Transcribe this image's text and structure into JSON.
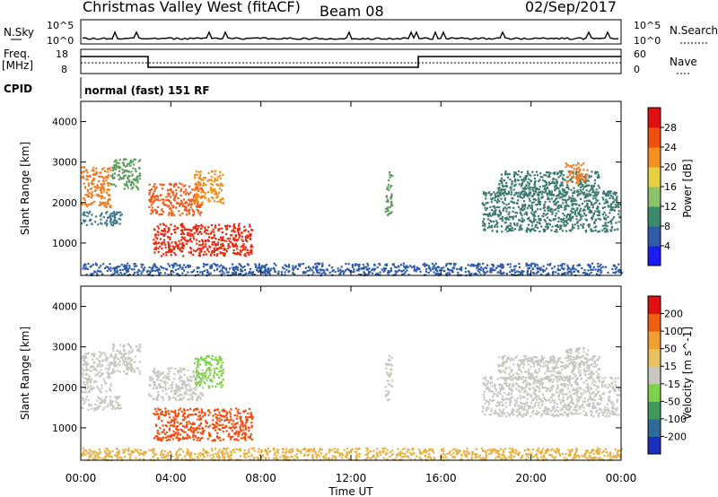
{
  "header": {
    "title": "Christmas Valley West (fitACF)",
    "beam": "Beam 08",
    "date": "02/Sep/2017"
  },
  "top_panels": {
    "nsky_label": "N.Sky",
    "nsky_ticks": [
      "10^5",
      "10^0"
    ],
    "nsearch_label": "N.Search",
    "nsearch_ticks": [
      "10^5",
      "10^0"
    ],
    "freq_label_1": "Freq.",
    "freq_label_2": "[MHz]",
    "freq_ticks": [
      "18",
      "8"
    ],
    "nave_label": "Nave",
    "nave_ticks": [
      "60",
      "0"
    ],
    "cpid_label": "CPID",
    "cpid_text": "normal (fast) 151 RF"
  },
  "chart_data": [
    {
      "type": "heatmap",
      "panel": "power",
      "ylabel": "Slant Range [km]",
      "xlabel": "Time UT",
      "x_ticks": [
        "00:00",
        "04:00",
        "08:00",
        "12:00",
        "16:00",
        "20:00",
        "00:00"
      ],
      "x_range_hours": [
        0,
        24
      ],
      "y_ticks": [
        1000,
        2000,
        3000,
        4000
      ],
      "y_range": [
        200,
        4500
      ],
      "colorbar": {
        "label": "Power [dB]",
        "ticks": [
          "4",
          "8",
          "12",
          "16",
          "20",
          "24",
          "28"
        ],
        "colors": [
          "#1c1cf0",
          "#2f5ca8",
          "#3c8a6c",
          "#8cc26a",
          "#e8d040",
          "#f39020",
          "#f05010",
          "#e01010"
        ]
      },
      "regions": [
        {
          "t": [
            0.0,
            1.3
          ],
          "r": [
            1900,
            2900
          ],
          "color": "#f07a1e"
        },
        {
          "t": [
            0.0,
            1.8
          ],
          "r": [
            1450,
            1800
          ],
          "color": "#3c7a8c"
        },
        {
          "t": [
            1.3,
            2.6
          ],
          "r": [
            2350,
            3100
          ],
          "color": "#5e9a5c"
        },
        {
          "t": [
            3.0,
            5.4
          ],
          "r": [
            1700,
            2500
          ],
          "color": "#f05a1a"
        },
        {
          "t": [
            5.0,
            6.3
          ],
          "r": [
            2000,
            2800
          ],
          "color": "#f39020"
        },
        {
          "t": [
            3.2,
            7.6
          ],
          "r": [
            700,
            1500
          ],
          "color": "#e82a10"
        },
        {
          "t": [
            13.5,
            13.8
          ],
          "r": [
            1700,
            2800
          ],
          "color": "#5e9a5c"
        },
        {
          "t": [
            17.8,
            23.9
          ],
          "r": [
            1300,
            2300
          ],
          "color": "#3e7a70"
        },
        {
          "t": [
            18.5,
            23.0
          ],
          "r": [
            2200,
            2800
          ],
          "color": "#3e7a70"
        },
        {
          "t": [
            21.5,
            22.5
          ],
          "r": [
            2500,
            3000
          ],
          "color": "#f07a1e"
        },
        {
          "t": [
            0.0,
            24.0
          ],
          "r": [
            220,
            520
          ],
          "color": "#2f5ca8"
        }
      ]
    },
    {
      "type": "heatmap",
      "panel": "velocity",
      "ylabel": "Slant Range [km]",
      "xlabel": "Time UT",
      "x_ticks": [
        "00:00",
        "04:00",
        "08:00",
        "12:00",
        "16:00",
        "20:00",
        "00:00"
      ],
      "x_range_hours": [
        0,
        24
      ],
      "y_ticks": [
        1000,
        2000,
        3000,
        4000
      ],
      "y_range": [
        200,
        4500
      ],
      "colorbar": {
        "label": "Velocity [m s^-1]",
        "ticks": [
          "200",
          "100",
          "50",
          "15",
          "-15",
          "-50",
          "-100",
          "-200"
        ],
        "colors": [
          "#1c2ec0",
          "#2e6a9a",
          "#3f9a5a",
          "#7ed24a",
          "#c8c8c0",
          "#e8c060",
          "#f0a030",
          "#f06010",
          "#e01010"
        ]
      },
      "regions": [
        {
          "t": [
            0.0,
            1.3
          ],
          "r": [
            1900,
            2900
          ],
          "color": "#c8c8c0"
        },
        {
          "t": [
            0.0,
            1.8
          ],
          "r": [
            1450,
            1800
          ],
          "color": "#c8c8c0"
        },
        {
          "t": [
            1.3,
            2.6
          ],
          "r": [
            2350,
            3100
          ],
          "color": "#c8c8c0"
        },
        {
          "t": [
            3.0,
            5.4
          ],
          "r": [
            1700,
            2500
          ],
          "color": "#c8c8c0"
        },
        {
          "t": [
            5.0,
            6.3
          ],
          "r": [
            2000,
            2800
          ],
          "color": "#7ed24a"
        },
        {
          "t": [
            3.2,
            7.6
          ],
          "r": [
            700,
            1500
          ],
          "color": "#f04e10"
        },
        {
          "t": [
            13.5,
            13.8
          ],
          "r": [
            1700,
            2800
          ],
          "color": "#c8c8c0"
        },
        {
          "t": [
            17.8,
            23.9
          ],
          "r": [
            1300,
            2300
          ],
          "color": "#c8c8c0"
        },
        {
          "t": [
            18.5,
            23.0
          ],
          "r": [
            2200,
            2800
          ],
          "color": "#c8c8c0"
        },
        {
          "t": [
            21.5,
            22.5
          ],
          "r": [
            2500,
            3000
          ],
          "color": "#c8c8c0"
        },
        {
          "t": [
            0.0,
            24.0
          ],
          "r": [
            220,
            520
          ],
          "color": "#e8b040"
        }
      ]
    }
  ],
  "xlabel": "Time UT"
}
